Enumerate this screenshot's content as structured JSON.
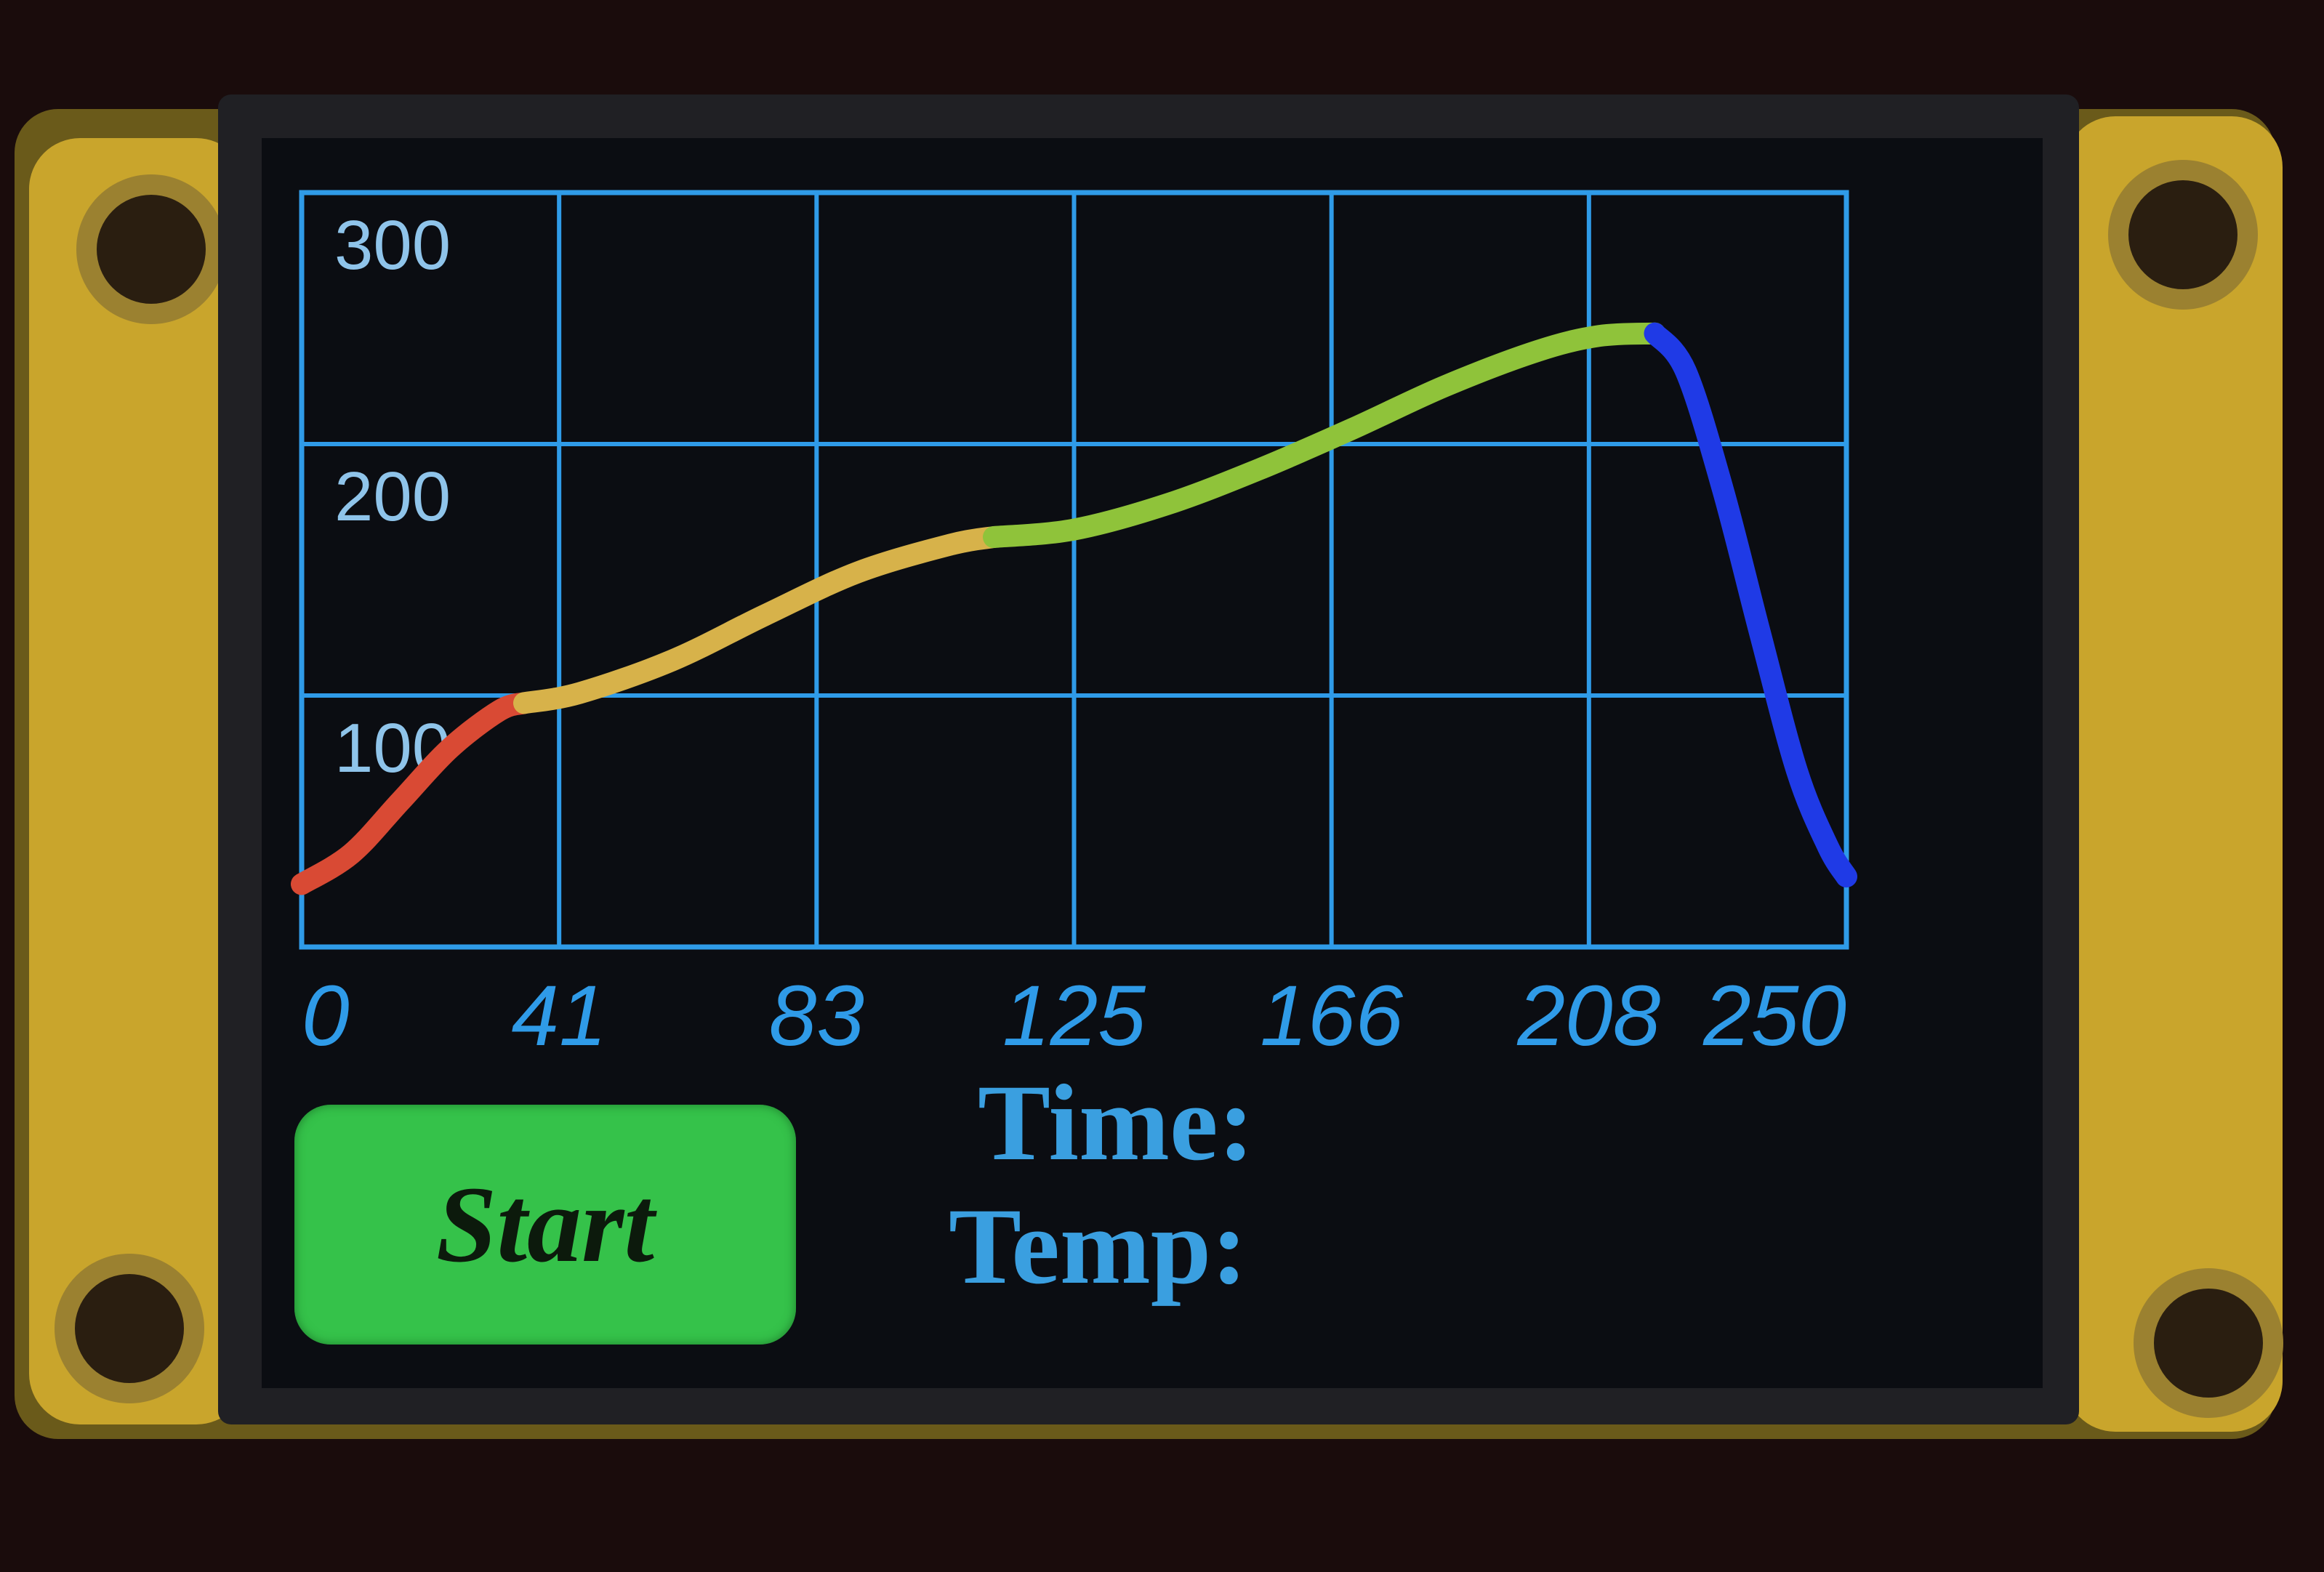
{
  "colors": {
    "grid": "#2f9be8",
    "phase_1": "#d94a34",
    "phase_2": "#d7b24a",
    "phase_3": "#8fc33a",
    "phase_4": "#1f3ae6",
    "button": "#35c24a",
    "label": "#3a9fe0"
  },
  "chart_data": {
    "type": "line",
    "xlim": [
      0,
      250
    ],
    "ylim": [
      0,
      300
    ],
    "x_ticks": [
      "0",
      "41",
      "83",
      "125",
      "166",
      "208",
      "250"
    ],
    "y_ticks": [
      "300",
      "200",
      "100"
    ],
    "grid": true,
    "series": [
      {
        "color": "#d94a34",
        "x": [
          0,
          8,
          16,
          24,
          32,
          36
        ],
        "y": [
          25,
          37,
          58,
          79,
          94,
          97
        ]
      },
      {
        "color": "#d7b24a",
        "x": [
          36,
          45,
          60,
          75,
          90,
          105,
          112
        ],
        "y": [
          97,
          101,
          114,
          132,
          149,
          160,
          163
        ]
      },
      {
        "color": "#8fc33a",
        "x": [
          112,
          125,
          140,
          155,
          170,
          185,
          200,
          210,
          219
        ],
        "y": [
          163,
          166,
          176,
          190,
          206,
          223,
          237,
          243,
          244
        ]
      },
      {
        "color": "#1f3ae6",
        "x": [
          219,
          224,
          230,
          236,
          242,
          247,
          250
        ],
        "y": [
          244,
          229,
          182,
          125,
          70,
          40,
          28
        ]
      }
    ]
  },
  "controls": {
    "start_label": "Start"
  },
  "readouts": {
    "time_label": "Time:",
    "temp_label": "Temp:"
  }
}
